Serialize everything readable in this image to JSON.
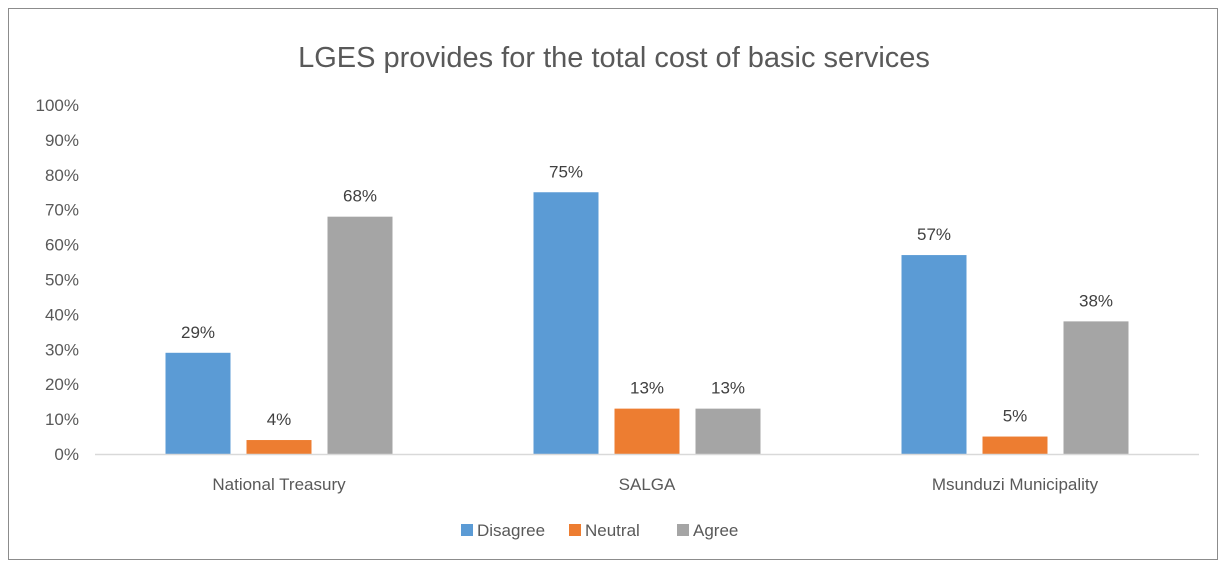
{
  "chart_data": {
    "type": "bar",
    "title": "LGES provides for the total cost of basic services",
    "categories": [
      "National Treasury",
      "SALGA",
      "Msunduzi Municipality"
    ],
    "series": [
      {
        "name": "Disagree",
        "color": "#5b9bd5",
        "values": [
          0.29,
          0.75,
          0.57
        ],
        "labels": [
          "29%",
          "75%",
          "57%"
        ]
      },
      {
        "name": "Neutral",
        "color": "#ed7d31",
        "values": [
          0.04,
          0.13,
          0.05
        ],
        "labels": [
          "4%",
          "13%",
          "5%"
        ]
      },
      {
        "name": "Agree",
        "color": "#a5a5a5",
        "values": [
          0.68,
          0.13,
          0.38
        ],
        "labels": [
          "68%",
          "13%",
          "38%"
        ]
      }
    ],
    "ylim": [
      0,
      1
    ],
    "yticks": [
      "0%",
      "10%",
      "20%",
      "30%",
      "40%",
      "50%",
      "60%",
      "70%",
      "80%",
      "90%",
      "100%"
    ],
    "grid": false,
    "legend": "bottom"
  }
}
